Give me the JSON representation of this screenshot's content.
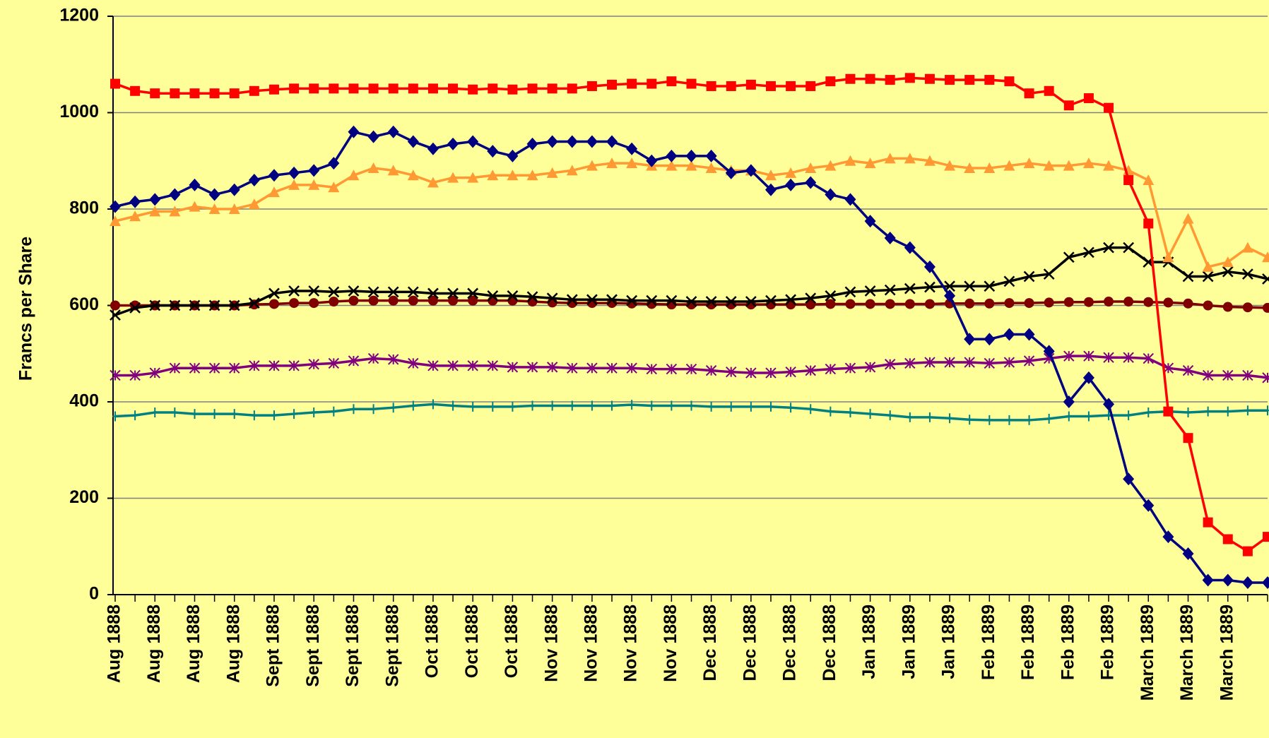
{
  "chart_data": {
    "type": "line",
    "y_label": "Francs per Share",
    "categories": [
      "Aug 1888",
      null,
      "Aug 1888",
      null,
      "Aug 1888",
      null,
      "Aug 1888",
      null,
      "Sept 1888",
      null,
      "Sept 1888",
      null,
      "Sept 1888",
      null,
      "Sept 1888",
      null,
      "Oct 1888",
      null,
      "Oct 1888",
      null,
      "Oct 1888",
      null,
      "Nov 1888",
      null,
      "Nov 1888",
      null,
      "Nov 1888",
      null,
      "Nov 1888",
      null,
      "Dec 1888",
      null,
      "Dec 1888",
      null,
      "Dec 1888",
      null,
      "Dec 1888",
      null,
      "Jan 1889",
      null,
      "Jan 1889",
      null,
      "Jan 1889",
      null,
      "Feb 1889",
      null,
      "Feb 1889",
      null,
      "Feb 1889",
      null,
      "Feb 1889",
      null,
      "March 1889",
      null,
      "March 1889",
      null,
      "March 1889",
      null,
      null
    ],
    "ylim": [
      0,
      1200
    ],
    "yticks": [
      0,
      200,
      400,
      600,
      800,
      1000,
      1200
    ],
    "grid": true,
    "series": [
      {
        "color": "#008080",
        "marker": "plus",
        "values": [
          370,
          372,
          378,
          378,
          375,
          375,
          375,
          372,
          372,
          375,
          378,
          380,
          385,
          385,
          388,
          392,
          395,
          392,
          390,
          390,
          390,
          392,
          392,
          392,
          392,
          392,
          394,
          392,
          392,
          392,
          390,
          390,
          390,
          390,
          388,
          385,
          380,
          378,
          375,
          372,
          368,
          368,
          366,
          363,
          362,
          362,
          362,
          365,
          370,
          370,
          372,
          372,
          378,
          380,
          378,
          380,
          380,
          382,
          382
        ]
      },
      {
        "color": "#800080",
        "marker": "star",
        "values": [
          455,
          455,
          460,
          470,
          470,
          470,
          470,
          475,
          475,
          475,
          478,
          480,
          485,
          490,
          488,
          480,
          475,
          475,
          475,
          475,
          472,
          472,
          472,
          470,
          470,
          470,
          470,
          468,
          468,
          468,
          465,
          462,
          460,
          460,
          462,
          465,
          468,
          470,
          472,
          478,
          480,
          482,
          482,
          482,
          480,
          482,
          485,
          490,
          495,
          495,
          492,
          492,
          490,
          470,
          465,
          455,
          455,
          455,
          450
        ]
      },
      {
        "color": "#800000",
        "marker": "circle",
        "values": [
          600,
          600,
          600,
          600,
          600,
          600,
          600,
          602,
          603,
          605,
          605,
          608,
          610,
          610,
          610,
          610,
          610,
          610,
          610,
          610,
          610,
          608,
          606,
          605,
          605,
          605,
          604,
          603,
          602,
          602,
          602,
          602,
          602,
          602,
          602,
          602,
          603,
          603,
          603,
          603,
          603,
          603,
          604,
          604,
          604,
          605,
          605,
          606,
          607,
          607,
          608,
          608,
          607,
          606,
          604,
          600,
          597,
          596,
          595
        ]
      },
      {
        "color": "#000000",
        "marker": "x",
        "values": [
          580,
          595,
          600,
          600,
          600,
          600,
          600,
          605,
          625,
          630,
          630,
          628,
          630,
          628,
          628,
          628,
          625,
          625,
          625,
          620,
          620,
          618,
          615,
          612,
          612,
          612,
          610,
          610,
          610,
          608,
          608,
          608,
          608,
          610,
          612,
          615,
          620,
          628,
          630,
          632,
          635,
          638,
          640,
          640,
          640,
          650,
          660,
          665,
          700,
          710,
          720,
          720,
          690,
          690,
          660,
          660,
          670,
          665,
          655
        ]
      },
      {
        "color": "#ff9933",
        "marker": "triangle",
        "values": [
          775,
          785,
          795,
          795,
          805,
          800,
          800,
          810,
          835,
          850,
          850,
          845,
          870,
          885,
          880,
          870,
          855,
          865,
          865,
          870,
          870,
          870,
          875,
          880,
          890,
          895,
          895,
          890,
          890,
          890,
          885,
          880,
          880,
          870,
          875,
          885,
          890,
          900,
          895,
          905,
          905,
          900,
          890,
          885,
          885,
          890,
          895,
          890,
          890,
          895,
          890,
          880,
          860,
          700,
          780,
          680,
          690,
          720,
          700
        ]
      },
      {
        "color": "#000080",
        "marker": "diamond",
        "values": [
          805,
          815,
          820,
          830,
          850,
          830,
          840,
          860,
          870,
          875,
          880,
          895,
          960,
          950,
          960,
          940,
          925,
          935,
          940,
          920,
          910,
          935,
          940,
          940,
          940,
          940,
          925,
          900,
          910,
          910,
          910,
          875,
          880,
          840,
          850,
          855,
          830,
          820,
          775,
          740,
          720,
          680,
          620,
          530,
          530,
          540,
          540,
          505,
          400,
          450,
          395,
          240,
          185,
          120,
          85,
          30,
          30,
          25,
          25
        ]
      },
      {
        "color": "#ff0000",
        "marker": "square",
        "values": [
          1060,
          1045,
          1040,
          1040,
          1040,
          1040,
          1040,
          1045,
          1048,
          1050,
          1050,
          1050,
          1050,
          1050,
          1050,
          1050,
          1050,
          1050,
          1048,
          1050,
          1048,
          1050,
          1050,
          1050,
          1055,
          1058,
          1060,
          1060,
          1065,
          1060,
          1055,
          1055,
          1058,
          1055,
          1055,
          1055,
          1065,
          1070,
          1070,
          1068,
          1072,
          1070,
          1068,
          1068,
          1068,
          1065,
          1040,
          1045,
          1015,
          1030,
          1010,
          860,
          770,
          380,
          325,
          150,
          115,
          90,
          120
        ]
      }
    ]
  }
}
